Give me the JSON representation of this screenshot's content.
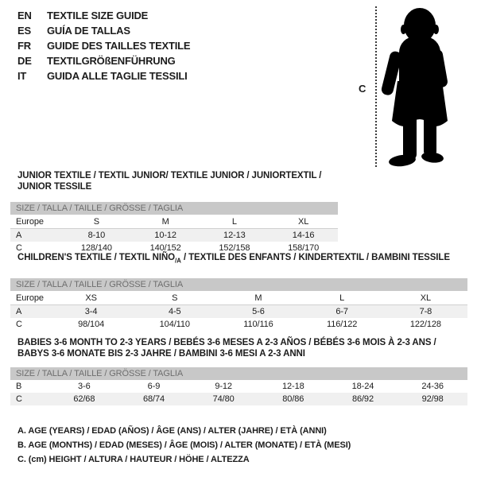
{
  "colors": {
    "background": "#ffffff",
    "text": "#1c1c1c",
    "size_bar_bg": "#c8c8c8",
    "size_bar_text": "#6e6e6e",
    "shaded_row_bg": "#f0f0f0",
    "silhouette": "#000000"
  },
  "languages": [
    {
      "code": "EN",
      "title": "TEXTILE SIZE GUIDE"
    },
    {
      "code": "ES",
      "title": "GUÍA DE TALLAS"
    },
    {
      "code": "FR",
      "title": "GUIDE DES TAILLES TEXTILE"
    },
    {
      "code": "DE",
      "title": "TEXTILGRÖßENFÜHRUNG"
    },
    {
      "code": "IT",
      "title": "GUIDA ALLE TAGLIE TESSILI"
    }
  ],
  "figure": {
    "icon": "baby-silhouette-icon",
    "height_label": "C"
  },
  "sections": [
    {
      "heading_parts": [
        {
          "text": "JUNIOR TEXTILE / TEXTIL JUNIOR/ TEXTILE JUNIOR / JUNIORTEXTIL / JUNIOR TESSILE"
        }
      ],
      "size_bar_label": "SIZE / TALLA / TAILLE / GRÖSSE / TAGLIA",
      "header_row": {
        "label": "Europe",
        "cells": [
          "S",
          "M",
          "L",
          "XL"
        ]
      },
      "rows": [
        {
          "label": "A",
          "cells": [
            "8-10",
            "10-12",
            "12-13",
            "14-16"
          ],
          "shaded": true
        },
        {
          "label": "C",
          "cells": [
            "128/140",
            "140/152",
            "152/158",
            "158/170"
          ],
          "shaded": false
        }
      ]
    },
    {
      "heading_parts": [
        {
          "text": "CHILDREN'S TEXTILE / TEXTIL NIÑO"
        },
        {
          "text": "/A",
          "sub": true
        },
        {
          "text": " / TEXTILE DES ENFANTS / KINDERTEXTIL / BAMBINI TESSILE"
        }
      ],
      "size_bar_label": "SIZE / TALLA / TAILLE / GRÖSSE / TAGLIA",
      "header_row": {
        "label": "Europe",
        "cells": [
          "XS",
          "S",
          "M",
          "L",
          "XL"
        ]
      },
      "rows": [
        {
          "label": "A",
          "cells": [
            "3-4",
            "4-5",
            "5-6",
            "6-7",
            "7-8"
          ],
          "shaded": true
        },
        {
          "label": "C",
          "cells": [
            "98/104",
            "104/110",
            "110/116",
            "116/122",
            "122/128"
          ],
          "shaded": false
        }
      ]
    },
    {
      "heading_parts": [
        {
          "text": "BABIES 3-6 MONTH TO 2-3 YEARS / BEBÉS 3-6 MESES A 2-3 AÑOS / BÉBÉS 3-6 MOIS À 2-3 ANS /\nBABYS 3-6 MONATE BIS 2-3 JAHRE / BAMBINI 3-6 MESI A 2-3 ANNI"
        }
      ],
      "size_bar_label": "SIZE / TALLA / TAILLE / GRÖSSE / TAGLIA",
      "header_row": null,
      "rows": [
        {
          "label": "B",
          "cells": [
            "3-6",
            "6-9",
            "9-12",
            "12-18",
            "18-24",
            "24-36"
          ],
          "shaded": false
        },
        {
          "label": "C",
          "cells": [
            "62/68",
            "68/74",
            "74/80",
            "80/86",
            "86/92",
            "92/98"
          ],
          "shaded": true
        }
      ]
    }
  ],
  "legend": [
    "A. AGE (YEARS) / EDAD (AÑOS) / ÂGE (ANS) / ALTER (JAHRE) / ETÀ (ANNI)",
    "B. AGE (MONTHS) / EDAD (MESES) / ÂGE (MOIS) / ALTER (MONATE) / ETÀ (MESI)",
    "C. (cm) HEIGHT / ALTURA / HAUTEUR / HÖHE / ALTEZZA"
  ]
}
